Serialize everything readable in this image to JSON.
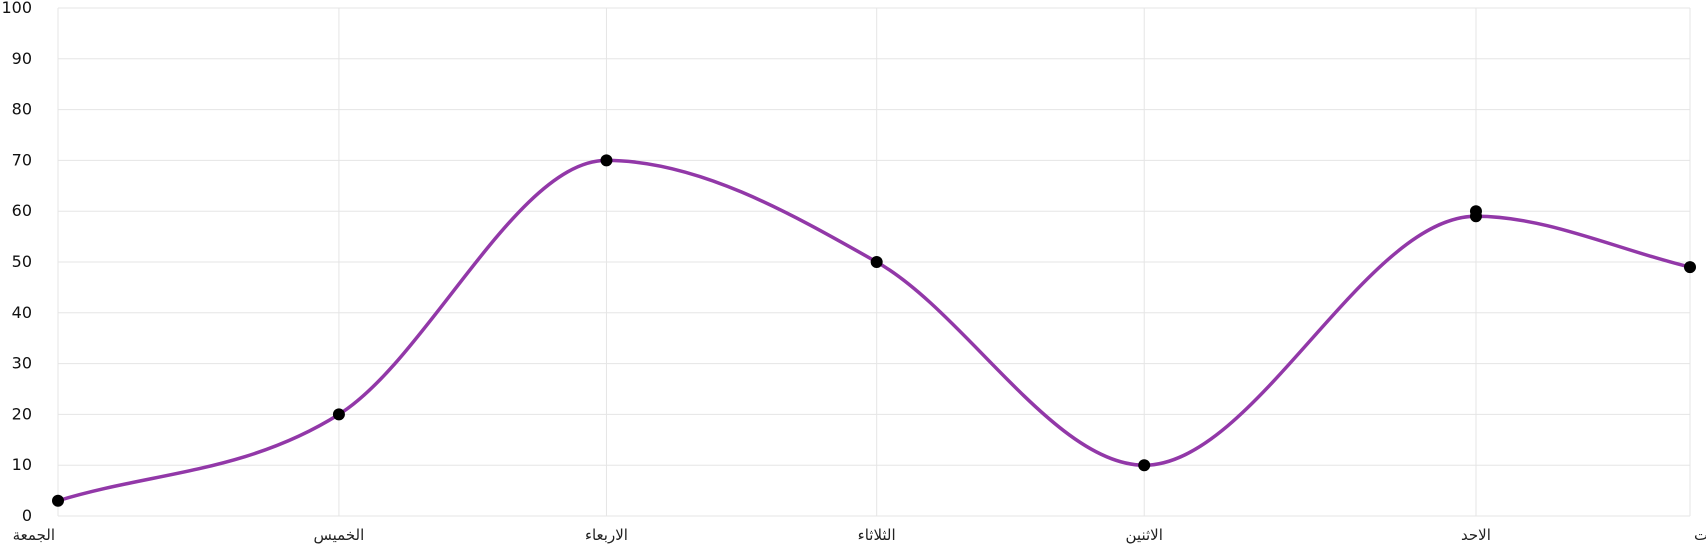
{
  "chart_data": {
    "type": "line",
    "categories": [
      "الجمعة",
      "الخميس",
      "الاربعاء",
      "الثلاثاء",
      "الاثنين",
      "الاحد",
      "السبت"
    ],
    "category_x": [
      0,
      1.05,
      2.05,
      3.06,
      4.06,
      5.3,
      6.1
    ],
    "series": [
      {
        "values": [
          3,
          20,
          70,
          50,
          10,
          59,
          49
        ],
        "color": "#9238a8"
      }
    ],
    "extra_points": [
      {
        "x": 5.3,
        "y": 60
      }
    ],
    "ylim": [
      0,
      100
    ],
    "yticks": [
      "0",
      "10",
      "20",
      "30",
      "40",
      "50",
      "60",
      "70",
      "80",
      "90",
      "100"
    ],
    "grid": true,
    "smooth": true,
    "point_color": "#000000",
    "grid_color": "#e5e5e5"
  }
}
